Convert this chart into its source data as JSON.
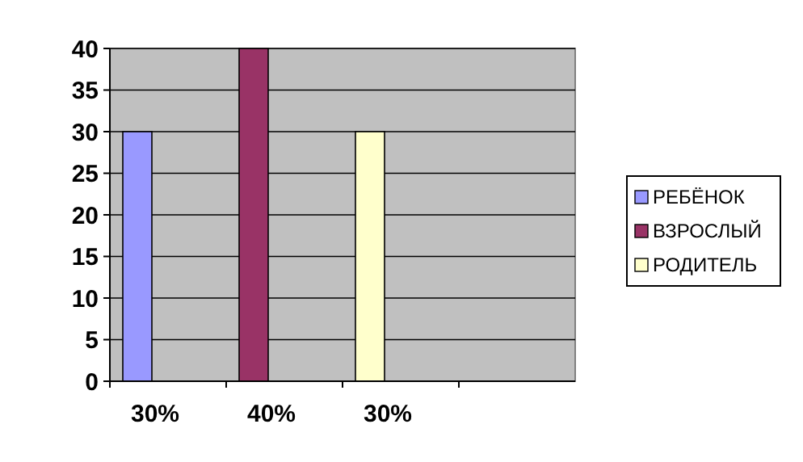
{
  "chart_data": {
    "type": "bar",
    "categories": [
      "30%",
      "40%",
      "30%",
      null
    ],
    "series": [
      {
        "name": "РЕБЁНОК",
        "color": "#9999ff",
        "values": [
          30,
          null,
          null,
          null
        ]
      },
      {
        "name": "ВЗРОСЛЫЙ",
        "color": "#993366",
        "values": [
          null,
          40,
          null,
          null
        ]
      },
      {
        "name": "РОДИТЕЛЬ",
        "color": "#ffffcc",
        "values": [
          null,
          null,
          30,
          null
        ]
      }
    ],
    "ylim": [
      0,
      40
    ],
    "yticks": [
      0,
      5,
      10,
      15,
      20,
      25,
      30,
      35,
      40
    ],
    "grid": "y",
    "legend": "right"
  }
}
